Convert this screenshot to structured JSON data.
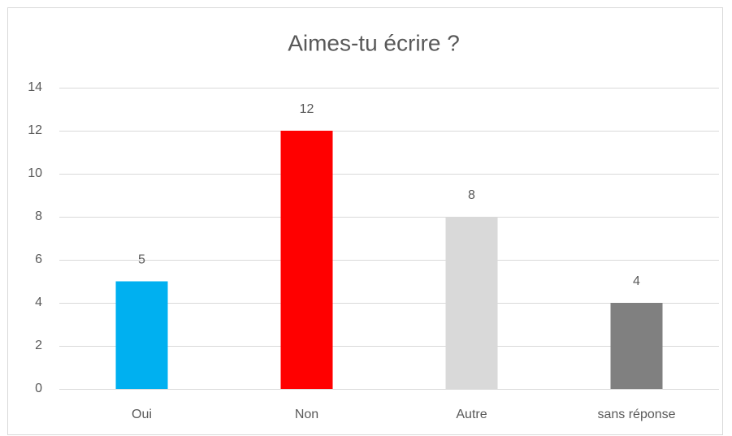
{
  "chart_data": {
    "type": "bar",
    "title": "Aimes-tu écrire ?",
    "categories": [
      "Oui",
      "Non",
      "Autre",
      "sans réponse"
    ],
    "values": [
      5,
      12,
      8,
      4
    ],
    "colors": [
      "#00b0f0",
      "#ff0000",
      "#d9d9d9",
      "#808080"
    ],
    "ylim": [
      0,
      14
    ],
    "yticks": [
      0,
      2,
      4,
      6,
      8,
      10,
      12,
      14
    ],
    "grid": true,
    "data_labels": true
  }
}
